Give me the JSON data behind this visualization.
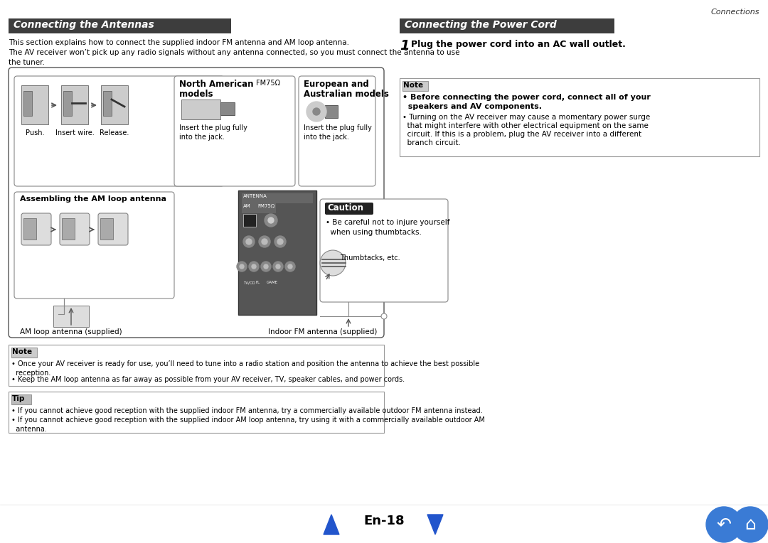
{
  "page_bg": "#ffffff",
  "header_bg": "#3d3d3d",
  "header_text_color": "#ffffff",
  "header_left_title": "Connecting the Antennas",
  "header_right_title": "Connecting the Power Cord",
  "connections_label": "Connections",
  "body_text_color": "#000000",
  "page_number": "En-18",
  "left_intro1": "This section explains how to connect the supplied indoor FM antenna and AM loop antenna.",
  "left_intro2": "The AV receiver won’t pick up any radio signals without any antenna connected, so you must connect the antenna to use",
  "left_intro3": "the tuner.",
  "north_american_label1": "North American",
  "north_american_label2": "models",
  "fm750_label": "FM75Ω",
  "european_label1": "European and",
  "european_label2": "Australian models",
  "insert_plug1a": "Insert the plug fully",
  "insert_plug1b": "into the jack.",
  "insert_plug2a": "Insert the plug fully",
  "insert_plug2b": "into the jack.",
  "assembling_label": "Assembling the AM loop antenna",
  "caution_header": "Caution",
  "caution_text1": "• Be careful not to injure yourself",
  "caution_text2": "  when using thumbtacks.",
  "thumbtacks_label": "Thumbtacks, etc.",
  "am_loop_label": "AM loop antenna (supplied)",
  "fm_indoor_label": "Indoor FM antenna (supplied)",
  "step1_num": "1",
  "step1_text": "Plug the power cord into an AC wall outlet.",
  "note_label": "Note",
  "note_right1": "• Before connecting the power cord, connect all of your",
  "note_right1b": "  speakers and AV components.",
  "note_right2": "• Turning on the AV receiver may cause a momentary power surge",
  "note_right2b": "  that might interfere with other electrical equipment on the same",
  "note_right2c": "  circuit. If this is a problem, plug the AV receiver into a different",
  "note_right2d": "  branch circuit.",
  "note_left1": "• Once your AV receiver is ready for use, you’ll need to tune into a radio station and position the antenna to achieve the best possible",
  "note_left1b": "  reception.",
  "note_left2": "• Keep the AM loop antenna as far away as possible from your AV receiver, TV, speaker cables, and power cords.",
  "tip_label": "Tip",
  "tip1": "• If you cannot achieve good reception with the supplied indoor FM antenna, try a commercially available outdoor FM antenna instead.",
  "tip2": "• If you cannot achieve good reception with the supplied indoor AM loop antenna, try using it with a commercially available outdoor AM",
  "tip2b": "  antenna.",
  "push_label": "Push.",
  "insert_wire_label": "Insert wire.",
  "release_label": "Release."
}
